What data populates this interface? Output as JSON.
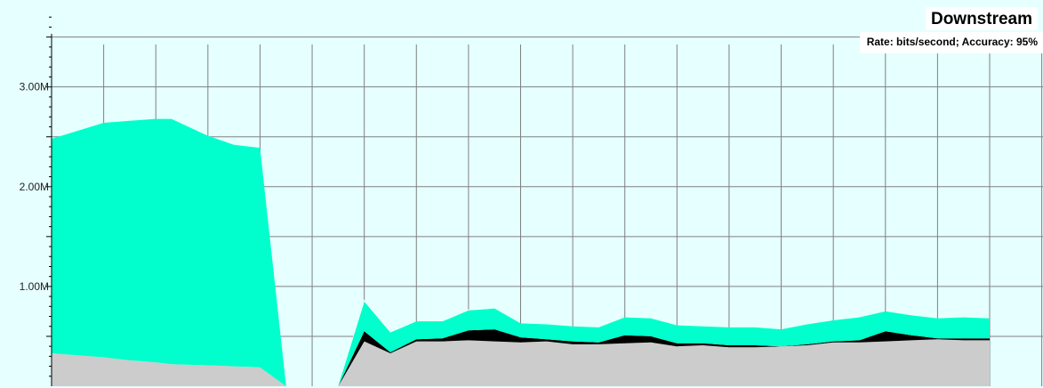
{
  "chart_data": {
    "type": "area",
    "title": "Downstream",
    "subtitle": "Rate: bits/second; Accuracy: 95%",
    "ylim": [
      0,
      3.8
    ],
    "y_tick_labels": [
      "1.00M",
      "2.00M",
      "3.00M"
    ],
    "y_ticks": [
      1,
      2,
      3
    ],
    "grid": true,
    "x_grid_count": 19,
    "stacking": "stacked",
    "x": [
      0,
      0.5,
      1,
      1.5,
      2,
      2.3,
      3,
      3.5,
      4,
      4.5,
      5,
      5.5,
      6,
      6.5,
      7,
      7.5,
      8,
      8.5,
      9,
      9.5,
      10,
      10.5,
      11,
      11.5,
      12,
      12.5,
      13,
      13.5,
      14,
      14.5,
      15,
      15.5,
      16,
      16.5,
      17,
      17.5,
      18
    ],
    "series": [
      {
        "color": "#cccccc",
        "values": [
          0.33,
          0.31,
          0.29,
          0.26,
          0.24,
          0.22,
          0.21,
          0.2,
          0.19,
          0.0,
          0.0,
          0.0,
          0.45,
          0.33,
          0.45,
          0.45,
          0.46,
          0.45,
          0.44,
          0.45,
          0.42,
          0.42,
          0.43,
          0.44,
          0.4,
          0.41,
          0.39,
          0.39,
          0.4,
          0.41,
          0.44,
          0.44,
          0.45,
          0.46,
          0.47,
          0.46,
          0.46
        ]
      },
      {
        "color": "#000000",
        "values": [
          0.0,
          0.0,
          0.0,
          0.0,
          0.0,
          0.0,
          0.0,
          0.0,
          0.0,
          0.0,
          0.0,
          0.0,
          0.1,
          0.01,
          0.02,
          0.03,
          0.1,
          0.12,
          0.05,
          0.02,
          0.03,
          0.02,
          0.08,
          0.06,
          0.03,
          0.02,
          0.02,
          0.02,
          0.0,
          0.01,
          0.01,
          0.02,
          0.1,
          0.05,
          0.01,
          0.02,
          0.02
        ]
      },
      {
        "color": "#00ffcc",
        "values": [
          2.15,
          2.25,
          2.35,
          2.4,
          2.44,
          2.46,
          2.3,
          2.22,
          2.2,
          0.0,
          0.0,
          0.0,
          0.3,
          0.2,
          0.18,
          0.17,
          0.2,
          0.21,
          0.14,
          0.15,
          0.15,
          0.15,
          0.18,
          0.18,
          0.18,
          0.17,
          0.18,
          0.18,
          0.17,
          0.2,
          0.21,
          0.23,
          0.2,
          0.2,
          0.2,
          0.21,
          0.2
        ]
      },
      {
        "color": "#ffffff",
        "values": [
          0.0,
          0.0,
          0.0,
          0.0,
          0.0,
          0.0,
          0.0,
          0.0,
          0.0,
          0.0,
          0.0,
          0.0,
          0.02,
          0.01,
          0.0,
          0.0,
          0.01,
          0.0,
          0.0,
          0.0,
          0.0,
          0.0,
          0.0,
          0.0,
          0.0,
          0.0,
          0.0,
          0.0,
          0.0,
          0.0,
          0.0,
          0.0,
          0.0,
          0.0,
          0.0,
          0.0,
          0.0
        ]
      }
    ],
    "background_color": "#e6ffff",
    "grid_color": "#808080"
  }
}
